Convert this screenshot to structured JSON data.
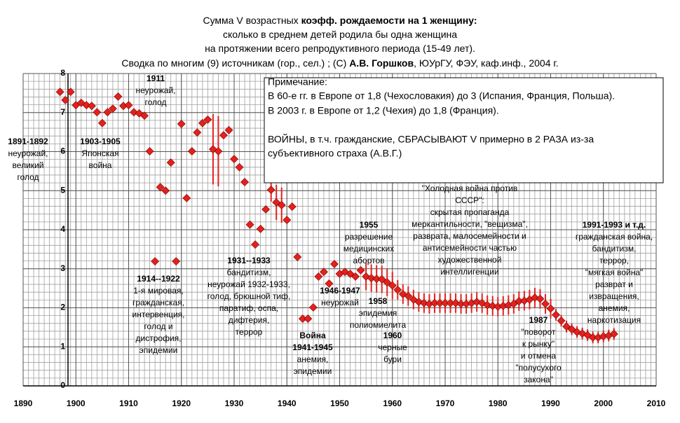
{
  "chart_data": {
    "type": "scatter",
    "title": [
      [
        "Сумма V возрастных ",
        "коэфф. рождаемости на 1 женщину:"
      ],
      [
        "сколько в среднем детей родила бы одна женщина"
      ],
      [
        "на протяжении всего репродуктивного периода (15-49 лет)."
      ],
      [
        "Сводка по многим (9) источникам (гор., сел.) ; (C) ",
        "А.В. Горшков",
        ", ЮУрГУ, ФЭУ, каф.инф., 2004 г."
      ]
    ],
    "note": {
      "title": "Примечание:",
      "lines": [
        "В 60-е гг. в Европе от 1,8 (Чехословакия) до 3 (Испания, Франция, Польша).",
        "В 2003 г. в Европе от 1,2 (Чехия) до 1,8 (Франция).",
        "ВОЙНЫ, в т.ч. гражданские, СБРАСЫВАЮТ V  примерно в 2 РАЗА  из-за",
        "субъективного страха  (А.В.Г.)"
      ]
    },
    "annotations": [
      {
        "title": [
          "1891-1892"
        ],
        "text": [
          "неурожай,",
          "великий",
          "голод"
        ]
      },
      {
        "title": [
          "1903-1905"
        ],
        "text": [
          "Японская",
          "война"
        ]
      },
      {
        "title": [
          "1911"
        ],
        "text": [
          "неурожай,",
          "голод"
        ]
      },
      {
        "title": [
          "1914--1922"
        ],
        "text": [
          "1-я мировая,",
          "гражданская,",
          "интервенция,",
          "голод и",
          "дистрофия,",
          "эпидемии"
        ]
      },
      {
        "title": [
          "1931--1933"
        ],
        "text": [
          "бандитизм,",
          "неурожай 1932-1933,",
          "голод, брюшной тиф,",
          "паратиф, оспа,",
          "дифтерия,",
          "террор"
        ]
      },
      {
        "title": [
          "Война",
          "1941-1945"
        ],
        "text": [
          "анемия,",
          "эпидемии"
        ]
      },
      {
        "title": [
          "1946-1947"
        ],
        "text": [
          "неурожай"
        ]
      },
      {
        "title": [
          "1955"
        ],
        "text": [
          "разрешение",
          "медицинских",
          "абортов"
        ]
      },
      {
        "title": [
          "1958"
        ],
        "text": [
          "эпидемия",
          "полиомиелита"
        ]
      },
      {
        "title": [
          "1960"
        ],
        "text": [
          "черные",
          "бури"
        ]
      },
      {
        "title": [],
        "text": [
          "\"Холодная война против",
          "СССР\":",
          "скрытая пропаганда",
          "меркантильности, \"вещизма\",",
          "разврата, малосемейности и",
          "антисемейности частью",
          "художественной",
          "интеллигенции"
        ]
      },
      {
        "title": [
          "1987"
        ],
        "text": [
          "\"поворот",
          "к рынку\"",
          "и отмена",
          "\"полусухого",
          "закона\""
        ]
      },
      {
        "title": [
          "1991-1993 и т.д."
        ],
        "text": [
          "гражданская война,",
          "бандитизм,",
          "террор,",
          "\"мягкая война\"",
          "разврат и",
          "извращения,",
          "анемия,",
          "наркотизация"
        ]
      }
    ],
    "x": [
      1897,
      1898,
      1899,
      1900,
      1901,
      1902,
      1903,
      1904,
      1905,
      1906,
      1907,
      1908,
      1909,
      1910,
      1911,
      1912,
      1913,
      1914,
      1915,
      1916,
      1917,
      1918,
      1919,
      1920,
      1921,
      1922,
      1923,
      1924,
      1925,
      1926,
      1927,
      1928,
      1929,
      1930,
      1931,
      1932,
      1933,
      1934,
      1935,
      1936,
      1937,
      1938,
      1939,
      1940,
      1941,
      1942,
      1943,
      1944,
      1945,
      1946,
      1947,
      1948,
      1949,
      1950,
      1951,
      1952,
      1953,
      1954,
      1955,
      1956,
      1957,
      1958,
      1959,
      1960,
      1961,
      1962,
      1963,
      1964,
      1965,
      1966,
      1967,
      1968,
      1969,
      1970,
      1971,
      1972,
      1973,
      1974,
      1975,
      1976,
      1977,
      1978,
      1979,
      1980,
      1981,
      1982,
      1983,
      1984,
      1985,
      1986,
      1987,
      1988,
      1989,
      1990,
      1991,
      1992,
      1993,
      1994,
      1995,
      1996,
      1997,
      1998,
      1999,
      2000,
      2001,
      2002
    ],
    "series": [
      {
        "color": "#e3211c",
        "values": [
          7.53,
          7.32,
          7.53,
          7.19,
          7.25,
          7.19,
          7.17,
          7.01,
          6.73,
          7.01,
          7.1,
          7.41,
          7.17,
          7.19,
          7.01,
          6.98,
          6.92,
          6.01,
          3.19,
          5.09,
          5.0,
          5.72,
          3.19,
          6.71,
          4.81,
          6.01,
          6.49,
          6.73,
          6.82,
          6.06,
          6.01,
          6.42,
          6.55,
          5.81,
          5.6,
          5.22,
          4.13,
          3.62,
          4.02,
          4.52,
          5.02,
          4.7,
          4.63,
          4.25,
          4.59,
          3.3,
          1.72,
          1.72,
          2.01,
          2.8,
          2.92,
          2.62,
          3.12,
          2.87,
          2.92,
          2.87,
          2.8,
          2.96,
          2.8,
          2.76,
          2.74,
          2.73,
          2.65,
          2.57,
          2.46,
          2.35,
          2.3,
          2.21,
          2.15,
          2.12,
          2.1,
          2.12,
          2.12,
          2.12,
          2.12,
          2.12,
          2.1,
          2.1,
          2.12,
          2.15,
          2.12,
          2.07,
          2.05,
          2.03,
          2.05,
          2.07,
          2.1,
          2.17,
          2.18,
          2.21,
          2.26,
          2.23,
          2.1,
          1.98,
          1.82,
          1.67,
          1.52,
          1.45,
          1.38,
          1.34,
          1.3,
          1.24,
          1.24,
          1.27,
          1.29,
          1.33
        ],
        "errors": [
          null,
          null,
          null,
          null,
          null,
          null,
          null,
          null,
          null,
          null,
          null,
          null,
          null,
          null,
          null,
          null,
          null,
          null,
          null,
          null,
          null,
          null,
          null,
          null,
          null,
          null,
          null,
          null,
          null,
          0.9,
          0.9,
          null,
          null,
          null,
          null,
          null,
          null,
          null,
          null,
          null,
          0.3,
          0.45,
          0.45,
          null,
          null,
          null,
          null,
          null,
          null,
          null,
          null,
          null,
          null,
          null,
          null,
          null,
          null,
          null,
          0.35,
          0.35,
          0.35,
          0.35,
          0.35,
          0.35,
          0.25,
          0.25,
          0.25,
          0.25,
          0.25,
          0.25,
          0.25,
          0.25,
          0.25,
          0.25,
          0.25,
          0.25,
          0.25,
          0.25,
          0.25,
          0.25,
          0.25,
          0.25,
          0.25,
          0.25,
          0.25,
          0.25,
          0.25,
          0.25,
          0.25,
          0.25,
          0.25,
          0.25,
          0.25,
          0.25,
          0.15,
          0.15,
          0.15,
          0.15,
          0.15,
          0.15,
          0.15,
          0.15,
          0.15,
          0.15,
          0.15,
          0.15
        ]
      }
    ],
    "xlim": [
      1890,
      2010
    ],
    "ylim": [
      0,
      8
    ],
    "xticks": [
      1890,
      1900,
      1910,
      1920,
      1930,
      1940,
      1950,
      1960,
      1970,
      1980,
      1990,
      2000,
      2010
    ],
    "yticks": [
      0,
      1,
      2,
      3,
      4,
      5,
      6,
      7,
      8
    ],
    "grid": true
  }
}
